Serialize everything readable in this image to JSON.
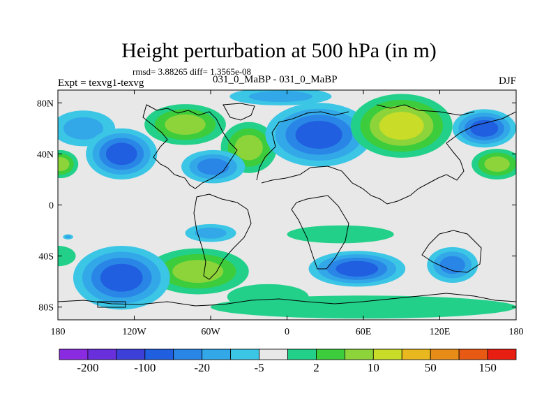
{
  "chart_data": {
    "type": "heatmap",
    "title": "Height perturbation at 500 hPa (in m)",
    "stats_text": "rmsd= 3.88265 diff= 1.3565e-08",
    "left_label": "Expt = texvg1-texvg",
    "center_label": "031_0_MaBP - 031_0_MaBP",
    "right_label": "DJF",
    "xlim": [
      -180,
      180
    ],
    "ylim": [
      -90,
      90
    ],
    "x_ticks": [
      {
        "value": -180,
        "label": "180"
      },
      {
        "value": -120,
        "label": "120W"
      },
      {
        "value": -60,
        "label": "60W"
      },
      {
        "value": 0,
        "label": "0"
      },
      {
        "value": 60,
        "label": "60E"
      },
      {
        "value": 120,
        "label": "120E"
      },
      {
        "value": 180,
        "label": "180"
      }
    ],
    "y_ticks": [
      {
        "value": 80,
        "label": "80N"
      },
      {
        "value": 40,
        "label": "40N"
      },
      {
        "value": 0,
        "label": "0"
      },
      {
        "value": -40,
        "label": "40S"
      },
      {
        "value": -80,
        "label": "80S"
      }
    ],
    "colorbar": {
      "colors": [
        "#8a2be2",
        "#6a2fdc",
        "#3c3fd8",
        "#1f5fe0",
        "#2a86e6",
        "#33a8e8",
        "#3cc6e6",
        "#e8e8e8",
        "#22d08a",
        "#3ccc3c",
        "#8cd43a",
        "#c8dc28",
        "#e8b81e",
        "#e88c18",
        "#e85a14",
        "#e81e12"
      ],
      "labels": [
        "-200",
        "-100",
        "-20",
        "-5",
        "2",
        "10",
        "50",
        "150"
      ],
      "label_after_box": [
        1,
        3,
        5,
        7,
        9,
        11,
        13,
        15
      ]
    },
    "blobs": [
      {
        "lon": -160,
        "lat": 60,
        "rx": 25,
        "ry": 14,
        "level": -8
      },
      {
        "lon": -130,
        "lat": 40,
        "rx": 28,
        "ry": 20,
        "level": -20
      },
      {
        "lon": -178,
        "lat": 32,
        "rx": 14,
        "ry": 11,
        "level": 10
      },
      {
        "lon": -80,
        "lat": 63,
        "rx": 32,
        "ry": 16,
        "level": 15
      },
      {
        "lon": -30,
        "lat": 45,
        "rx": 22,
        "ry": 20,
        "level": 18
      },
      {
        "lon": -58,
        "lat": 30,
        "rx": 25,
        "ry": 13,
        "level": -12
      },
      {
        "lon": 25,
        "lat": 55,
        "rx": 42,
        "ry": 25,
        "level": -20
      },
      {
        "lon": -5,
        "lat": 85,
        "rx": 40,
        "ry": 7,
        "level": -6
      },
      {
        "lon": 90,
        "lat": 62,
        "rx": 40,
        "ry": 25,
        "level": 20
      },
      {
        "lon": 155,
        "lat": 60,
        "rx": 25,
        "ry": 15,
        "level": -20
      },
      {
        "lon": 165,
        "lat": 32,
        "rx": 20,
        "ry": 12,
        "level": 10
      },
      {
        "lon": -60,
        "lat": -22,
        "rx": 20,
        "ry": 7,
        "level": -5
      },
      {
        "lon": 42,
        "lat": -23,
        "rx": 42,
        "ry": 7,
        "level": 4
      },
      {
        "lon": -70,
        "lat": -52,
        "rx": 40,
        "ry": 18,
        "level": 15
      },
      {
        "lon": -130,
        "lat": -57,
        "rx": 38,
        "ry": 25,
        "level": -20
      },
      {
        "lon": 55,
        "lat": -50,
        "rx": 38,
        "ry": 14,
        "level": -20
      },
      {
        "lon": 130,
        "lat": -47,
        "rx": 20,
        "ry": 14,
        "level": -15
      },
      {
        "lon": 60,
        "lat": -80,
        "rx": 120,
        "ry": 9,
        "level": 4
      },
      {
        "lon": -15,
        "lat": -72,
        "rx": 32,
        "ry": 10,
        "level": 4
      },
      {
        "lon": -180,
        "lat": -40,
        "rx": 14,
        "ry": 8,
        "level": 4
      },
      {
        "lon": -172,
        "lat": -25,
        "rx": 4,
        "ry": 2,
        "level": -5
      }
    ]
  }
}
